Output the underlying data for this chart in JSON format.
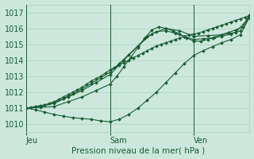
{
  "title": "",
  "xlabel": "Pression niveau de la mer( hPa )",
  "ylabel": "",
  "bg_color": "#cce8dc",
  "grid_color": "#aaccbb",
  "line_color": "#1a5c35",
  "text_color": "#1a5c35",
  "ylim": [
    1009.5,
    1017.5
  ],
  "yticks": [
    1010,
    1011,
    1012,
    1013,
    1014,
    1015,
    1016,
    1017
  ],
  "xlim": [
    0,
    96
  ],
  "xtick_positions": [
    0,
    36,
    72
  ],
  "xtick_labels": [
    "Jeu",
    "Sam",
    "Ven"
  ],
  "vlines": [
    36,
    72
  ],
  "series": [
    {
      "x": [
        0,
        2,
        4,
        6,
        8,
        10,
        12,
        14,
        16,
        18,
        20,
        22,
        24,
        26,
        28,
        30,
        32,
        34,
        36,
        38,
        40,
        42,
        44,
        46,
        48,
        50,
        52,
        54,
        56,
        58,
        60,
        62,
        64,
        66,
        68,
        70,
        72,
        74,
        76,
        78,
        80,
        82,
        84,
        86,
        88,
        90,
        92,
        94,
        96
      ],
      "y": [
        1011.0,
        1011.05,
        1011.1,
        1011.15,
        1011.2,
        1011.3,
        1011.4,
        1011.55,
        1011.7,
        1011.85,
        1012.0,
        1012.15,
        1012.3,
        1012.5,
        1012.7,
        1012.85,
        1013.0,
        1013.2,
        1013.4,
        1013.55,
        1013.7,
        1013.85,
        1014.0,
        1014.15,
        1014.3,
        1014.45,
        1014.6,
        1014.75,
        1014.9,
        1015.0,
        1015.1,
        1015.2,
        1015.3,
        1015.4,
        1015.5,
        1015.6,
        1015.65,
        1015.7,
        1015.8,
        1015.9,
        1016.0,
        1016.1,
        1016.2,
        1016.3,
        1016.4,
        1016.5,
        1016.6,
        1016.7,
        1016.8
      ],
      "marker": "D",
      "markersize": 2,
      "linewidth": 0.8
    },
    {
      "x": [
        0,
        4,
        8,
        12,
        16,
        20,
        24,
        28,
        32,
        36,
        40,
        44,
        48,
        52,
        56,
        60,
        64,
        68,
        72,
        76,
        80,
        84,
        88,
        92,
        96
      ],
      "y": [
        1011.0,
        1011.1,
        1011.2,
        1011.35,
        1011.6,
        1011.9,
        1012.2,
        1012.55,
        1012.9,
        1013.25,
        1013.8,
        1014.35,
        1014.9,
        1015.5,
        1015.8,
        1015.85,
        1015.7,
        1015.5,
        1015.3,
        1015.35,
        1015.4,
        1015.5,
        1015.65,
        1015.85,
        1016.75
      ],
      "marker": "D",
      "markersize": 2,
      "linewidth": 0.8
    },
    {
      "x": [
        0,
        6,
        12,
        18,
        24,
        30,
        36,
        42,
        48,
        54,
        60,
        66,
        72,
        78,
        84,
        90,
        96
      ],
      "y": [
        1011.0,
        1011.1,
        1011.3,
        1011.7,
        1012.1,
        1012.6,
        1013.1,
        1014.0,
        1014.9,
        1015.65,
        1016.0,
        1015.85,
        1015.5,
        1015.55,
        1015.6,
        1015.75,
        1016.7
      ],
      "marker": "D",
      "markersize": 2,
      "linewidth": 0.8
    },
    {
      "x": [
        0,
        6,
        12,
        18,
        24,
        30,
        36,
        39,
        42,
        45,
        48,
        51,
        54,
        57,
        60,
        63,
        66,
        69,
        72,
        75,
        78,
        81,
        84,
        87,
        90,
        93,
        96
      ],
      "y": [
        1011.0,
        1011.05,
        1011.1,
        1011.4,
        1011.7,
        1012.1,
        1012.5,
        1013.0,
        1013.6,
        1014.2,
        1014.8,
        1015.4,
        1015.9,
        1016.1,
        1016.0,
        1015.85,
        1015.65,
        1015.4,
        1015.2,
        1015.2,
        1015.3,
        1015.45,
        1015.6,
        1015.75,
        1015.9,
        1016.1,
        1016.85
      ],
      "marker": "D",
      "markersize": 2,
      "linewidth": 0.8
    },
    {
      "x": [
        0,
        4,
        8,
        12,
        16,
        20,
        24,
        28,
        32,
        36,
        40,
        44,
        48,
        52,
        56,
        60,
        64,
        68,
        72,
        76,
        80,
        84,
        88,
        92,
        96
      ],
      "y": [
        1011.0,
        1010.9,
        1010.75,
        1010.6,
        1010.5,
        1010.4,
        1010.35,
        1010.3,
        1010.2,
        1010.15,
        1010.3,
        1010.6,
        1011.0,
        1011.5,
        1012.0,
        1012.6,
        1013.2,
        1013.8,
        1014.3,
        1014.6,
        1014.85,
        1015.1,
        1015.3,
        1015.6,
        1016.7
      ],
      "marker": "D",
      "markersize": 2,
      "linewidth": 0.8
    }
  ]
}
